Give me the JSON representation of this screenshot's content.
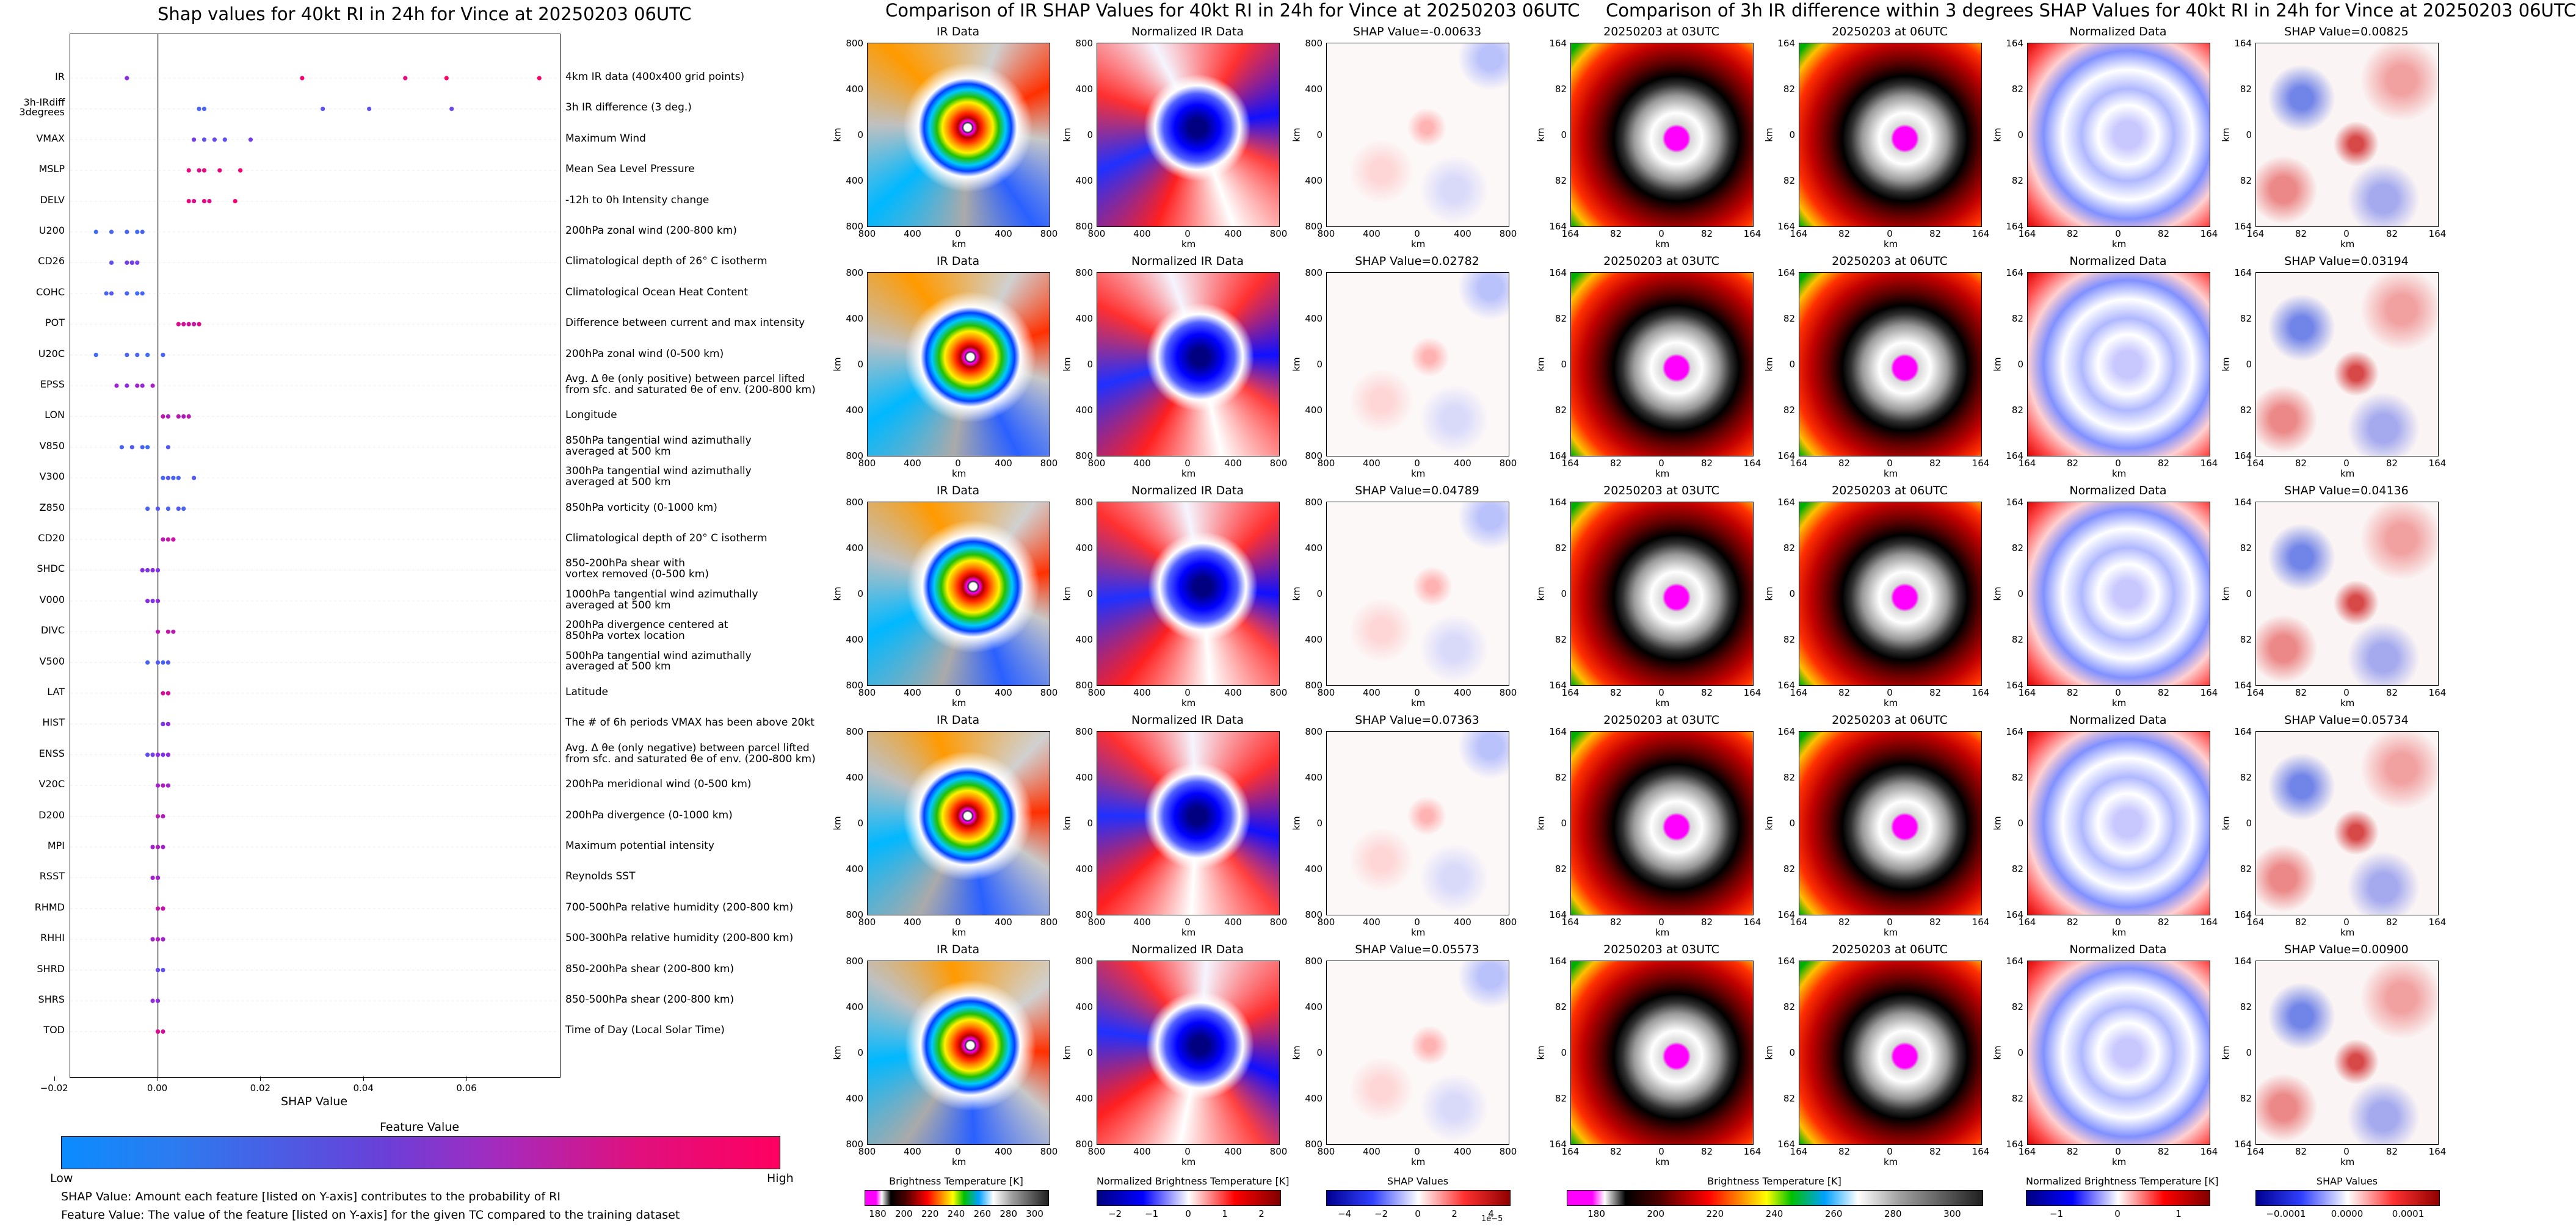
{
  "colors": {
    "low": "#1e88ff",
    "mid": "#8a2be2",
    "high": "#ff0066",
    "gridline": "#eeeeee"
  },
  "left": {
    "title": "Shap values for 40kt RI in 24h for Vince at 20250203 06UTC",
    "xlabel": "SHAP Value",
    "colorbar_title": "Feature Value",
    "colorbar_low": "Low",
    "colorbar_high": "High",
    "footnote1": "SHAP Value: Amount each feature [listed on Y-axis] contributes to the probability of RI",
    "footnote2": "Feature Value: The value of the feature [listed on Y-axis] for the given TC compared to the training dataset"
  },
  "middle": {
    "title": "Comparison of IR SHAP Values for 40kt RI in 24h for Vince at 20250203 06UTC",
    "col_titles": [
      "IR Data",
      "Normalized IR Data"
    ],
    "shap_titles": [
      "SHAP Value=-0.00633",
      "SHAP Value=0.02782",
      "SHAP Value=0.04789",
      "SHAP Value=0.07363",
      "SHAP Value=0.05573"
    ],
    "axis_unit": "km",
    "ticks": [
      "800",
      "400",
      "0",
      "400",
      "800"
    ],
    "cb1_label": "Brightness Temperature [K]",
    "cb1_ticks": [
      "180",
      "200",
      "220",
      "240",
      "260",
      "280",
      "300"
    ],
    "cb2_label": "Normalized Brightness Temperature [K]",
    "cb2_ticks": [
      "−2",
      "−1",
      "0",
      "1",
      "2"
    ],
    "cb3_label": "SHAP Values",
    "cb3_ticks": [
      "−4",
      "−2",
      "0",
      "2",
      "4"
    ],
    "cb3_exp": "1e−5"
  },
  "right": {
    "title": "Comparison of 3h IR difference within 3 degrees SHAP Values for 40kt RI in 24h for Vince at 20250203 06UTC",
    "col_titles": [
      "20250203 at 03UTC",
      "20250203 at 06UTC",
      "Normalized Data"
    ],
    "shap_titles": [
      "SHAP Value=0.00825",
      "SHAP Value=0.03194",
      "SHAP Value=0.04136",
      "SHAP Value=0.05734",
      "SHAP Value=0.00900"
    ],
    "axis_unit": "km",
    "ticks": [
      "164",
      "82",
      "0",
      "82",
      "164"
    ],
    "cb1_label": "Brightness Temperature [K]",
    "cb1_ticks": [
      "180",
      "200",
      "220",
      "240",
      "260",
      "280",
      "300"
    ],
    "cb2_label": "Normalized Brightness Temperature [K]",
    "cb2_ticks": [
      "−1",
      "0",
      "1"
    ],
    "cb3_label": "SHAP Values",
    "cb3_ticks": [
      "−0.0001",
      "0.0000",
      "0.0001"
    ]
  },
  "chart_data": [
    {
      "type": "scatter",
      "title": "Shap values for 40kt RI in 24h for Vince at 20250203 06UTC",
      "xlabel": "SHAP Value",
      "xlim": [
        -0.017,
        0.078
      ],
      "xticks": [
        "−0.02",
        "0.00",
        "0.02",
        "0.04",
        "0.06"
      ],
      "xtick_values": [
        -0.02,
        0.0,
        0.02,
        0.04,
        0.06
      ],
      "features": [
        {
          "name": "IR",
          "desc": "4km IR data (400x400 grid points)",
          "pts": [
            [
              -0.006,
              0.5
            ],
            [
              0.028,
              0.95
            ],
            [
              0.048,
              0.9
            ],
            [
              0.056,
              1.0
            ],
            [
              0.074,
              1.0
            ]
          ]
        },
        {
          "name": "3h-IRdiff\n3degrees",
          "desc": "3h IR difference (3 deg.)",
          "pts": [
            [
              0.008,
              0.2
            ],
            [
              0.009,
              0.2
            ],
            [
              0.032,
              0.3
            ],
            [
              0.041,
              0.3
            ],
            [
              0.057,
              0.35
            ]
          ]
        },
        {
          "name": "VMAX",
          "desc": "Maximum Wind",
          "pts": [
            [
              0.007,
              0.4
            ],
            [
              0.009,
              0.3
            ],
            [
              0.011,
              0.35
            ],
            [
              0.013,
              0.3
            ],
            [
              0.018,
              0.4
            ]
          ]
        },
        {
          "name": "MSLP",
          "desc": "Mean Sea Level Pressure",
          "pts": [
            [
              0.006,
              0.9
            ],
            [
              0.008,
              0.85
            ],
            [
              0.009,
              0.9
            ],
            [
              0.012,
              0.9
            ],
            [
              0.016,
              0.95
            ]
          ]
        },
        {
          "name": "DELV",
          "desc": "-12h to 0h Intensity change",
          "pts": [
            [
              0.006,
              0.9
            ],
            [
              0.007,
              0.85
            ],
            [
              0.009,
              0.9
            ],
            [
              0.01,
              0.85
            ],
            [
              0.015,
              0.95
            ]
          ]
        },
        {
          "name": "U200",
          "desc": "200hPa zonal wind (200-800 km)",
          "pts": [
            [
              -0.012,
              0.15
            ],
            [
              -0.009,
              0.2
            ],
            [
              -0.006,
              0.2
            ],
            [
              -0.004,
              0.15
            ],
            [
              -0.003,
              0.2
            ]
          ]
        },
        {
          "name": "CD26",
          "desc": "Climatological depth of 26° C isotherm",
          "pts": [
            [
              -0.009,
              0.3
            ],
            [
              -0.006,
              0.4
            ],
            [
              -0.005,
              0.45
            ],
            [
              -0.005,
              0.4
            ],
            [
              -0.004,
              0.4
            ]
          ]
        },
        {
          "name": "COHC",
          "desc": "Climatological Ocean Heat Content",
          "pts": [
            [
              -0.01,
              0.2
            ],
            [
              -0.009,
              0.25
            ],
            [
              -0.006,
              0.2
            ],
            [
              -0.004,
              0.15
            ],
            [
              -0.003,
              0.2
            ]
          ]
        },
        {
          "name": "POT",
          "desc": "Difference between current and max intensity",
          "pts": [
            [
              0.004,
              0.85
            ],
            [
              0.005,
              0.8
            ],
            [
              0.006,
              0.8
            ],
            [
              0.007,
              0.75
            ],
            [
              0.008,
              0.85
            ]
          ]
        },
        {
          "name": "U20C",
          "desc": "200hPa zonal wind (0-500 km)",
          "pts": [
            [
              -0.012,
              0.15
            ],
            [
              -0.006,
              0.2
            ],
            [
              -0.004,
              0.2
            ],
            [
              -0.002,
              0.15
            ],
            [
              0.001,
              0.2
            ]
          ]
        },
        {
          "name": "EPSS",
          "desc": "Avg. Δ θe (only positive) between parcel lifted\nfrom sfc. and saturated θe of env. (200-800 km)",
          "pts": [
            [
              -0.008,
              0.6
            ],
            [
              -0.006,
              0.5
            ],
            [
              -0.004,
              0.6
            ],
            [
              -0.003,
              0.55
            ],
            [
              -0.001,
              0.6
            ]
          ]
        },
        {
          "name": "LON",
          "desc": "Longitude",
          "pts": [
            [
              0.001,
              0.7
            ],
            [
              0.002,
              0.65
            ],
            [
              0.004,
              0.7
            ],
            [
              0.005,
              0.65
            ],
            [
              0.006,
              0.7
            ]
          ]
        },
        {
          "name": "V850",
          "desc": "850hPa tangential wind azimuthally\naveraged at 500 km",
          "pts": [
            [
              -0.007,
              0.2
            ],
            [
              -0.005,
              0.25
            ],
            [
              -0.003,
              0.2
            ],
            [
              -0.002,
              0.15
            ],
            [
              0.002,
              0.25
            ]
          ]
        },
        {
          "name": "V300",
          "desc": "300hPa tangential wind azimuthally\naveraged at 500 km",
          "pts": [
            [
              0.001,
              0.2
            ],
            [
              0.002,
              0.25
            ],
            [
              0.003,
              0.2
            ],
            [
              0.004,
              0.2
            ],
            [
              0.007,
              0.25
            ]
          ]
        },
        {
          "name": "Z850",
          "desc": "850hPa vorticity (0-1000 km)",
          "pts": [
            [
              -0.002,
              0.2
            ],
            [
              0.0,
              0.25
            ],
            [
              0.002,
              0.2
            ],
            [
              0.004,
              0.25
            ],
            [
              0.005,
              0.2
            ]
          ]
        },
        {
          "name": "CD20",
          "desc": "Climatological depth of 20° C isotherm",
          "pts": [
            [
              0.001,
              0.7
            ],
            [
              0.002,
              0.75
            ],
            [
              0.003,
              0.7
            ],
            [
              0.003,
              0.75
            ]
          ]
        },
        {
          "name": "SHDC",
          "desc": "850-200hPa shear with\nvortex removed (0-500 km)",
          "pts": [
            [
              -0.003,
              0.5
            ],
            [
              -0.002,
              0.45
            ],
            [
              -0.001,
              0.5
            ],
            [
              0.0,
              0.45
            ]
          ]
        },
        {
          "name": "V000",
          "desc": "1000hPa tangential wind azimuthally\naveraged at 500 km",
          "pts": [
            [
              -0.002,
              0.5
            ],
            [
              -0.001,
              0.45
            ],
            [
              0.0,
              0.5
            ]
          ]
        },
        {
          "name": "DIVC",
          "desc": "200hPa divergence centered at\n850hPa vortex location",
          "pts": [
            [
              0.0,
              0.7
            ],
            [
              0.002,
              0.75
            ],
            [
              0.003,
              0.7
            ]
          ]
        },
        {
          "name": "V500",
          "desc": "500hPa tangential wind azimuthally\naveraged at 500 km",
          "pts": [
            [
              -0.002,
              0.2
            ],
            [
              0.0,
              0.25
            ],
            [
              0.001,
              0.2
            ],
            [
              0.002,
              0.25
            ]
          ]
        },
        {
          "name": "LAT",
          "desc": "Latitude",
          "pts": [
            [
              0.001,
              0.8
            ],
            [
              0.002,
              0.75
            ],
            [
              0.002,
              0.8
            ]
          ]
        },
        {
          "name": "HIST",
          "desc": "The # of 6h periods VMAX has been above 20kt",
          "pts": [
            [
              0.001,
              0.5
            ],
            [
              0.001,
              0.45
            ],
            [
              0.002,
              0.5
            ]
          ]
        },
        {
          "name": "ENSS",
          "desc": "Avg. Δ θe (only negative) between parcel lifted\nfrom sfc. and saturated θe of env. (200-800 km)",
          "pts": [
            [
              -0.002,
              0.3
            ],
            [
              -0.001,
              0.4
            ],
            [
              0.0,
              0.5
            ],
            [
              0.001,
              0.45
            ],
            [
              0.002,
              0.5
            ]
          ]
        },
        {
          "name": "V20C",
          "desc": "200hPa meridional wind (0-500 km)",
          "pts": [
            [
              0.0,
              0.6
            ],
            [
              0.001,
              0.65
            ],
            [
              0.002,
              0.6
            ]
          ]
        },
        {
          "name": "D200",
          "desc": "200hPa divergence (0-1000 km)",
          "pts": [
            [
              0.0,
              0.7
            ],
            [
              0.001,
              0.65
            ]
          ]
        },
        {
          "name": "MPI",
          "desc": "Maximum potential intensity",
          "pts": [
            [
              -0.001,
              0.6
            ],
            [
              0.0,
              0.65
            ],
            [
              0.001,
              0.6
            ]
          ]
        },
        {
          "name": "RSST",
          "desc": "Reynolds SST",
          "pts": [
            [
              -0.001,
              0.6
            ],
            [
              0.0,
              0.55
            ],
            [
              0.0,
              0.6
            ]
          ]
        },
        {
          "name": "RHMD",
          "desc": "700-500hPa relative humidity (200-800 km)",
          "pts": [
            [
              0.0,
              0.75
            ],
            [
              0.001,
              0.7
            ],
            [
              0.001,
              0.75
            ]
          ]
        },
        {
          "name": "RHHI",
          "desc": "500-300hPa relative humidity (200-800 km)",
          "pts": [
            [
              -0.001,
              0.6
            ],
            [
              0.0,
              0.65
            ],
            [
              0.001,
              0.6
            ]
          ]
        },
        {
          "name": "SHRD",
          "desc": "850-200hPa shear (200-800 km)",
          "pts": [
            [
              0.0,
              0.3
            ],
            [
              0.0,
              0.35
            ],
            [
              0.001,
              0.3
            ]
          ]
        },
        {
          "name": "SHRS",
          "desc": "850-500hPa shear (200-800 km)",
          "pts": [
            [
              -0.001,
              0.5
            ],
            [
              0.0,
              0.45
            ],
            [
              0.0,
              0.5
            ]
          ]
        },
        {
          "name": "TOD",
          "desc": "Time of Day (Local Solar Time)",
          "pts": [
            [
              0.0,
              0.8
            ],
            [
              0.0,
              0.85
            ],
            [
              0.001,
              0.8
            ]
          ]
        }
      ]
    },
    {
      "type": "heatmap",
      "title": "Comparison of IR SHAP Values for 40kt RI in 24h for Vince at 20250203 06UTC",
      "panels": [
        "IR Data",
        "Normalized IR Data",
        "SHAP"
      ],
      "shap_values": [
        -0.00633,
        0.02782,
        0.04789,
        0.07363,
        0.05573
      ]
    },
    {
      "type": "heatmap",
      "title": "Comparison of 3h IR difference within 3 degrees SHAP Values for 40kt RI in 24h for Vince at 20250203 06UTC",
      "panels": [
        "20250203 at 03UTC",
        "20250203 at 06UTC",
        "Normalized Data",
        "SHAP"
      ],
      "shap_values": [
        0.00825,
        0.03194,
        0.04136,
        0.05734,
        0.009
      ]
    }
  ]
}
